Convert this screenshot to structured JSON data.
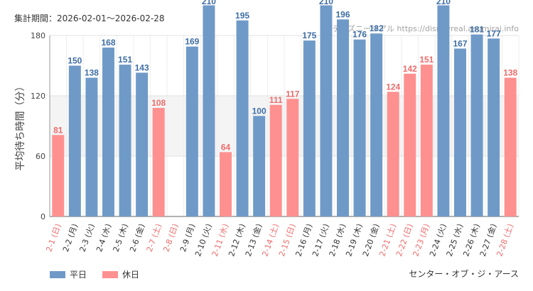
{
  "header": {
    "period": "集計期間：2026-02-01〜2026-02-28",
    "watermark": "ディズニーリアル https://disneyreal.asumirai.info"
  },
  "footer": {
    "attraction": "センター・オブ・ジ・アース"
  },
  "legend": [
    {
      "label": "平日",
      "color": "#6f9ac8"
    },
    {
      "label": "休日",
      "color": "#ff9090"
    }
  ],
  "colors": {
    "weekday_bar": "#6f9ac8",
    "holiday_bar": "#ff9090",
    "weekday_label": "#3e6ea6",
    "holiday_label": "#ee6b6b",
    "weekday_tick": "#333333",
    "holiday_tick": "#ee6b6b"
  },
  "chart_data": {
    "type": "bar",
    "title": "",
    "ylabel": "平均待ち時間（分）",
    "xlabel": "",
    "ylim": [
      0,
      180
    ],
    "yticks": [
      0,
      60,
      120,
      180
    ],
    "categories": [
      "2-1 (日)",
      "2-2 (月)",
      "2-3 (火)",
      "2-4 (水)",
      "2-5 (木)",
      "2-6 (金)",
      "2-7 (土)",
      "2-8 (日)",
      "2-9 (月)",
      "2-10 (火)",
      "2-11 (水)",
      "2-12 (木)",
      "2-13 (金)",
      "2-14 (土)",
      "2-15 (日)",
      "2-16 (月)",
      "2-17 (火)",
      "2-18 (水)",
      "2-19 (木)",
      "2-20 (金)",
      "2-21 (土)",
      "2-22 (日)",
      "2-23 (月)",
      "2-24 (火)",
      "2-25 (水)",
      "2-26 (木)",
      "2-27 (金)",
      "2-28 (土)"
    ],
    "values": [
      81,
      150,
      138,
      168,
      151,
      143,
      108,
      null,
      169,
      210,
      64,
      195,
      100,
      111,
      117,
      175,
      210,
      196,
      176,
      182,
      124,
      142,
      151,
      210,
      167,
      181,
      177,
      138
    ],
    "holiday": [
      true,
      false,
      false,
      false,
      false,
      false,
      true,
      true,
      false,
      false,
      true,
      false,
      false,
      true,
      true,
      false,
      false,
      false,
      false,
      false,
      true,
      true,
      true,
      false,
      false,
      false,
      false,
      true
    ],
    "series": [
      {
        "name": "平日"
      },
      {
        "name": "休日"
      }
    ]
  }
}
